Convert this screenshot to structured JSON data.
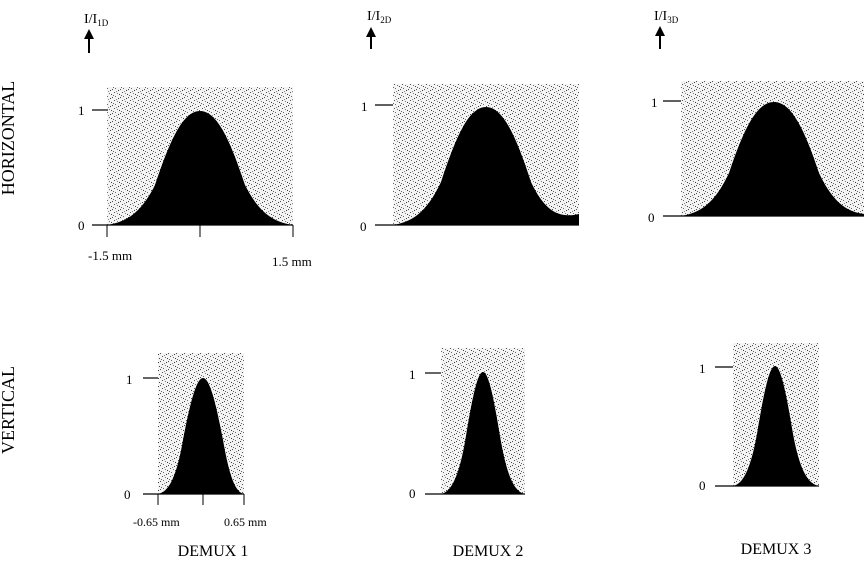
{
  "rows": {
    "horizontal": "HORIZONTAL",
    "vertical": "VERTICAL"
  },
  "columns": [
    {
      "label": "DEMUX 1",
      "ylabel_base": "I/I",
      "ylabel_sub": "1D"
    },
    {
      "label": "DEMUX 2",
      "ylabel_base": "I/I",
      "ylabel_sub": "2D"
    },
    {
      "label": "DEMUX 3",
      "ylabel_base": "I/I",
      "ylabel_sub": "3D"
    }
  ],
  "ticks": {
    "one": "1",
    "zero": "0"
  },
  "horizontal_axis": {
    "left": "-1.5 mm",
    "right": "1.5 mm"
  },
  "vertical_axis": {
    "left": "-0.65 mm",
    "right": "0.65 mm"
  },
  "colors": {
    "ink": "#000000",
    "stipple": "#5a5a5a",
    "paper": "#ffffff"
  }
}
